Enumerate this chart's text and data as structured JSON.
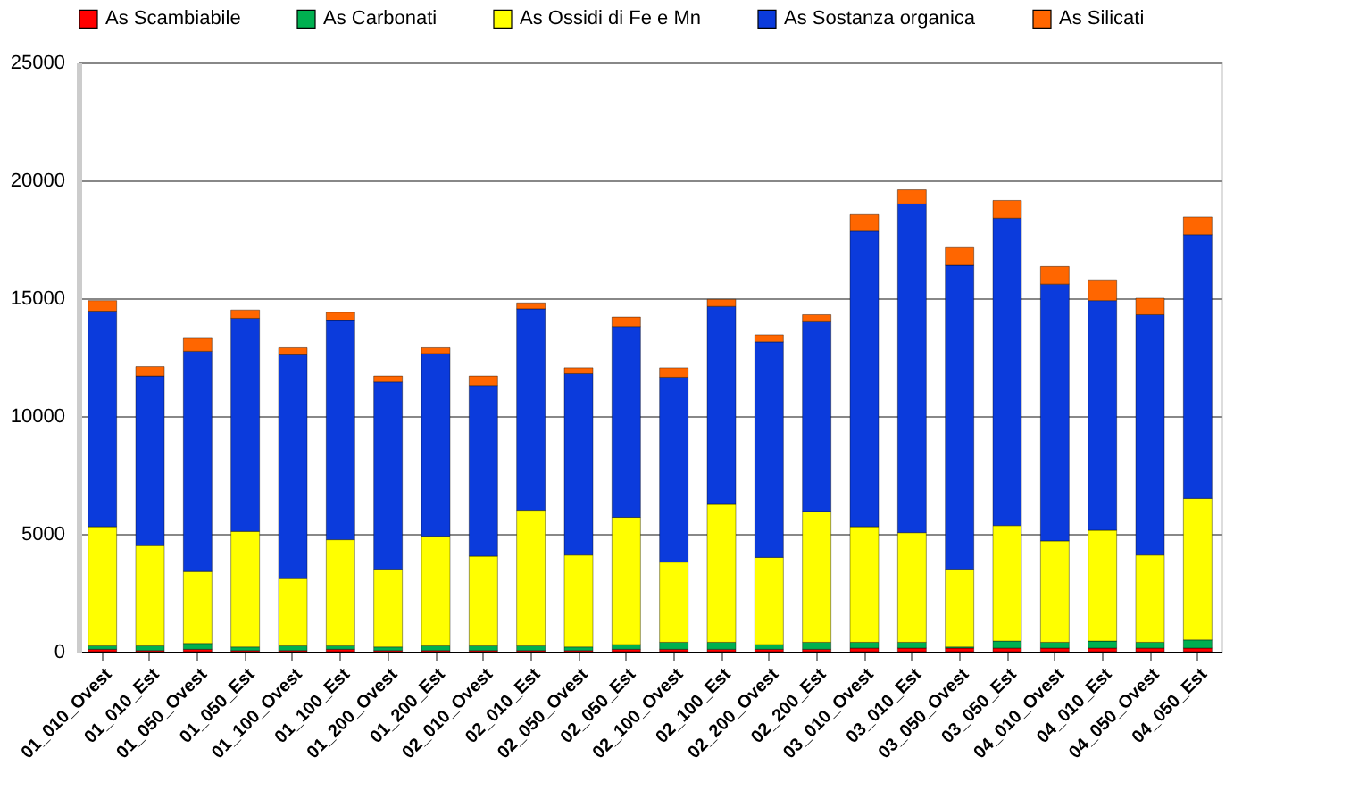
{
  "chart_data": {
    "type": "bar",
    "stacked": true,
    "categories": [
      "01_010_Ovest",
      "01_010_Est",
      "01_050_Ovest",
      "01_050_Est",
      "01_100_Ovest",
      "01_100_Est",
      "01_200_Ovest",
      "01_200_Est",
      "02_010_Ovest",
      "02_010_Est",
      "02_050_Ovest",
      "02_050_Est",
      "02_100_Ovest",
      "02_100_Est",
      "02_200_Ovest",
      "02_200_Est",
      "03_010_Ovest",
      "03_010_Est",
      "03_050_Ovest",
      "03_050_Est",
      "04_010_Ovest",
      "04_010_Est",
      "04_050_Ovest",
      "04_050_Est"
    ],
    "series": [
      {
        "name": "As Scambiabile",
        "color": "#ff0000",
        "values": [
          100,
          50,
          100,
          50,
          50,
          100,
          50,
          50,
          50,
          50,
          50,
          100,
          100,
          100,
          100,
          100,
          150,
          150,
          150,
          150,
          150,
          150,
          150,
          150
        ]
      },
      {
        "name": "As Carbonati",
        "color": "#00b050",
        "values": [
          150,
          200,
          250,
          150,
          200,
          150,
          150,
          200,
          200,
          200,
          150,
          200,
          300,
          300,
          200,
          300,
          250,
          250,
          50,
          300,
          250,
          300,
          250,
          350
        ]
      },
      {
        "name": "As Ossidi di Fe e Mn",
        "color": "#ffff00",
        "values": [
          5050,
          4250,
          3050,
          4900,
          2850,
          4500,
          3300,
          4650,
          3800,
          5750,
          3900,
          5400,
          3400,
          5850,
          3700,
          5550,
          4900,
          4650,
          3300,
          4900,
          4300,
          4700,
          3700,
          6000
        ]
      },
      {
        "name": "As Sostanza organica",
        "color": "#0b3bdc",
        "values": [
          9150,
          7200,
          9350,
          9050,
          9500,
          9300,
          7950,
          7750,
          7250,
          8550,
          7700,
          8100,
          7850,
          8400,
          9150,
          8050,
          12550,
          13950,
          12900,
          13050,
          10900,
          9750,
          10200,
          11200
        ]
      },
      {
        "name": "As Silicati",
        "color": "#ff6600",
        "values": [
          450,
          400,
          550,
          350,
          300,
          350,
          250,
          250,
          400,
          250,
          250,
          400,
          400,
          300,
          300,
          300,
          700,
          600,
          750,
          750,
          750,
          850,
          700,
          750
        ]
      }
    ],
    "ylim": [
      0,
      25000
    ],
    "yticks": [
      0,
      5000,
      10000,
      15000,
      20000,
      25000
    ],
    "grid": "y",
    "legend": "top"
  }
}
